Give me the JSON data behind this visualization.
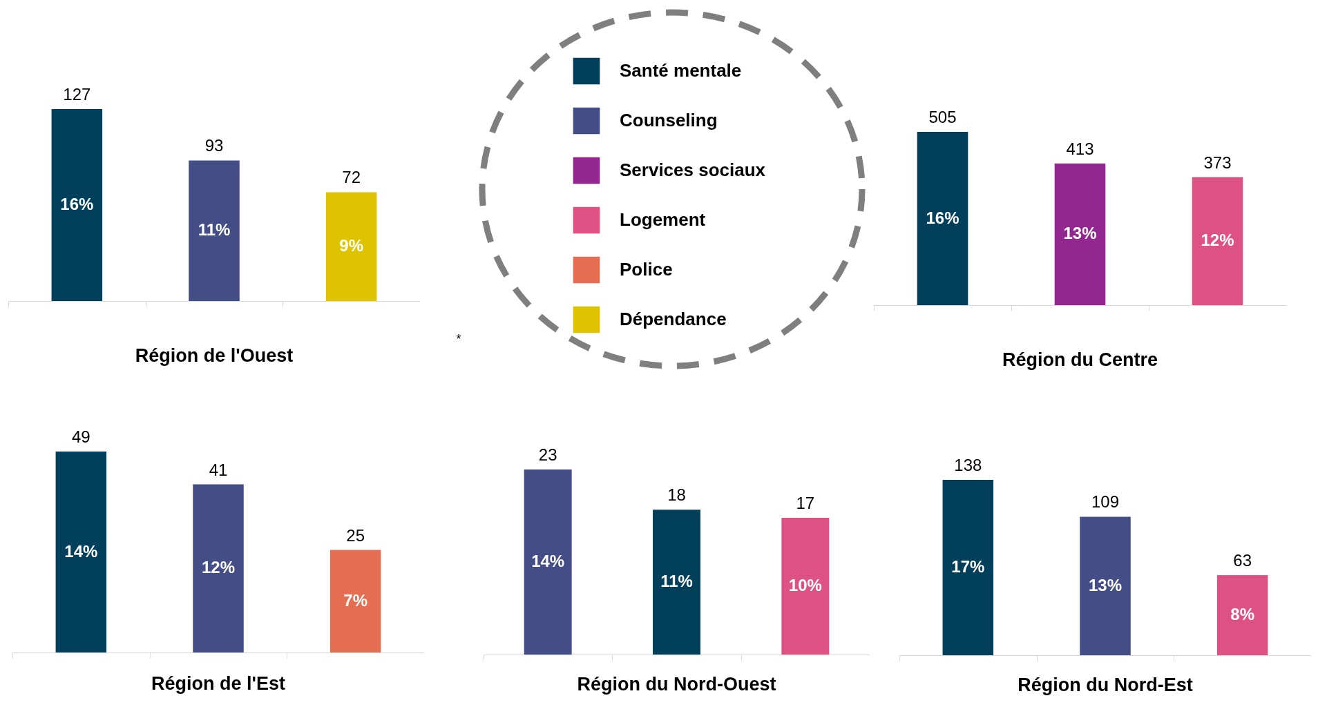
{
  "chart_data": [
    {
      "type": "bar",
      "title": "Région de l'Ouest",
      "categories": [
        null,
        null,
        null
      ],
      "values": [
        127,
        93,
        72
      ],
      "colors": [
        "#023f5b",
        "#434e86",
        "#dfc300"
      ],
      "annotations": [
        "16%",
        "11%",
        "9%"
      ],
      "data_labels": true
    },
    {
      "type": "other",
      "categories": [
        "Santé mentale",
        "Counseling",
        "Services sociaux",
        "Logement",
        "Police",
        "Dépendance"
      ],
      "colors": [
        "#023f5b",
        "#434e86",
        "#92278f",
        "#de5283",
        "#e36e52",
        "#dfc300"
      ],
      "annotations": [
        "*"
      ]
    },
    {
      "type": "bar",
      "title": "Région du Centre",
      "categories": [
        null,
        null,
        null
      ],
      "values": [
        505,
        413,
        373
      ],
      "colors": [
        "#023f5b",
        "#92278f",
        "#de5283"
      ],
      "annotations": [
        "16%",
        "13%",
        "12%"
      ],
      "data_labels": true
    },
    {
      "type": "bar",
      "title": "Région de l'Est",
      "categories": [
        null,
        null,
        null
      ],
      "values": [
        49,
        41,
        25
      ],
      "colors": [
        "#023f5b",
        "#434e86",
        "#e36e52"
      ],
      "annotations": [
        "14%",
        "12%",
        "7%"
      ],
      "data_labels": true
    },
    {
      "type": "bar",
      "title": "Région du Nord-Ouest",
      "categories": [
        null,
        null,
        null
      ],
      "values": [
        23,
        18,
        17
      ],
      "colors": [
        "#434e86",
        "#023f5b",
        "#de5283"
      ],
      "annotations": [
        "14%",
        "11%",
        "10%"
      ],
      "data_labels": true
    },
    {
      "type": "bar",
      "title": "Région du Nord-Est",
      "categories": [
        null,
        null,
        null
      ],
      "values": [
        138,
        109,
        63
      ],
      "colors": [
        "#023f5b",
        "#434e86",
        "#de5283"
      ],
      "annotations": [
        "17%",
        "13%",
        "8%"
      ],
      "data_labels": true
    }
  ]
}
